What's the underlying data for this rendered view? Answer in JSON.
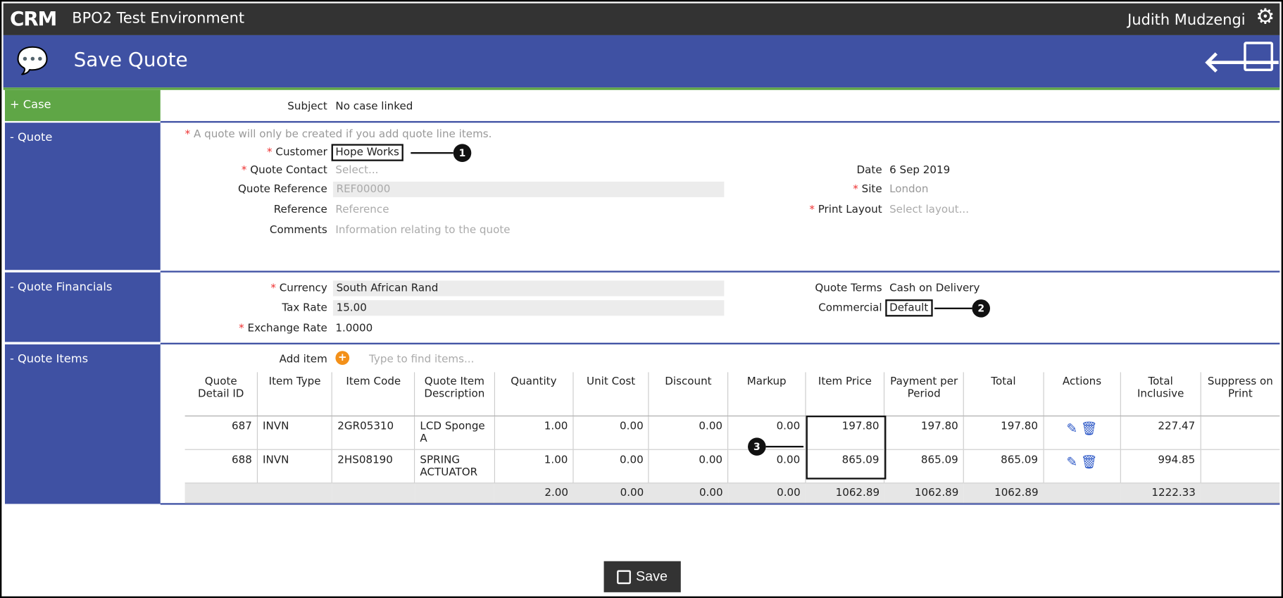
{
  "app": {
    "logo": "CRM",
    "environment": "BPO2 Test Environment",
    "user": "Judith Mudzengi"
  },
  "page": {
    "title": "Save Quote",
    "icon": "chat-bubbles-icon"
  },
  "sections": {
    "case": "+ Case",
    "quote": "- Quote",
    "financials": "- Quote Financials",
    "items": "- Quote Items"
  },
  "case": {
    "subject_label": "Subject",
    "subject_value": "No case linked"
  },
  "quote": {
    "note": "A quote will only be created if you add quote line items.",
    "customer_label": "Customer",
    "customer_value": "Hope Works",
    "contact_label": "Quote Contact",
    "contact_placeholder": "Select...",
    "reference_label": "Quote Reference",
    "reference_placeholder": "REF00000",
    "ref_label": "Reference",
    "ref_placeholder": "Reference",
    "comments_label": "Comments",
    "comments_placeholder": "Information relating to the quote",
    "date_label": "Date",
    "date_value": "6 Sep 2019",
    "site_label": "Site",
    "site_value": "London",
    "layout_label": "Print Layout",
    "layout_placeholder": "Select layout..."
  },
  "financials": {
    "currency_label": "Currency",
    "currency_value": "South African Rand",
    "tax_label": "Tax Rate",
    "tax_value": "15.00",
    "exchange_label": "Exchange Rate",
    "exchange_value": "1.0000",
    "terms_label": "Quote Terms",
    "terms_value": "Cash on Delivery",
    "commercial_label": "Commercial",
    "commercial_value": "Default"
  },
  "items": {
    "add_label": "Add item",
    "search_placeholder": "Type to find items...",
    "columns": [
      "Quote Detail ID",
      "Item Type",
      "Item Code",
      "Quote Item Description",
      "Quantity",
      "Unit Cost",
      "Discount",
      "Markup",
      "Item Price",
      "Payment per Period",
      "Total",
      "Actions",
      "Total Inclusive",
      "Suppress on Print"
    ],
    "rows": [
      [
        "687",
        "INVN",
        "2GR05310",
        "LCD Sponge A",
        "1.00",
        "0.00",
        "0.00",
        "0.00",
        "197.80",
        "197.80",
        "197.80",
        "",
        "227.47",
        ""
      ],
      [
        "688",
        "INVN",
        "2HS08190",
        "SPRING ACTUATOR",
        "1.00",
        "0.00",
        "0.00",
        "0.00",
        "865.09",
        "865.09",
        "865.09",
        "",
        "994.85",
        ""
      ]
    ],
    "totals": [
      "",
      "",
      "",
      "",
      "2.00",
      "0.00",
      "0.00",
      "0.00",
      "1062.89",
      "1062.89",
      "1062.89",
      "",
      "1222.33",
      ""
    ]
  },
  "callouts": [
    "1",
    "2",
    "3"
  ],
  "save_label": "Save",
  "colors": {
    "topbar": "#333333",
    "header": "#3f51a3",
    "case": "#5fa646",
    "required": "#ee3333",
    "icons": "#2a56c6"
  }
}
